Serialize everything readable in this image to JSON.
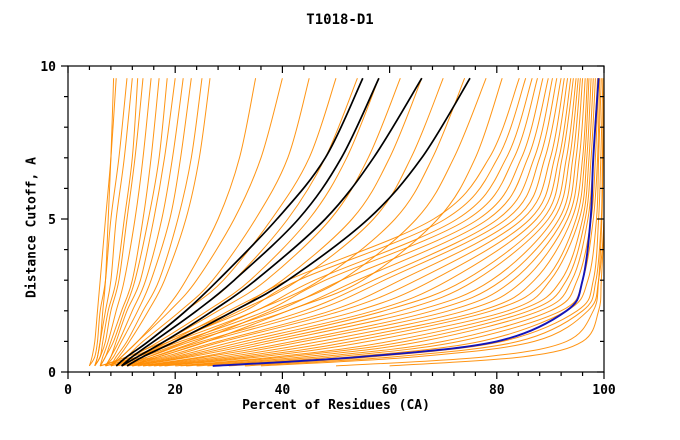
{
  "chart_data": {
    "type": "line",
    "title": "T1018-D1",
    "xlabel": "Percent of Residues (CA)",
    "ylabel": "Distance Cutoff, A",
    "xlim": [
      0,
      100
    ],
    "ylim": [
      0,
      10
    ],
    "xticks": [
      0,
      20,
      40,
      60,
      80,
      100
    ],
    "yticks": [
      0,
      5,
      10
    ],
    "x_minor_step": 4,
    "y_minor_step": 1,
    "grid": false,
    "legend": "none",
    "y_grid": [
      0.2,
      0.5,
      1,
      2,
      3,
      5,
      7,
      9.6
    ],
    "colors": {
      "orange": "#ff8c00",
      "black": "#000000",
      "blue": "#1414b8"
    },
    "series": [
      {
        "name": "orange-1",
        "color": "orange",
        "x": [
          4,
          4.5,
          5,
          5.5,
          6,
          7,
          8,
          9
        ]
      },
      {
        "name": "orange-2",
        "color": "orange",
        "x": [
          4,
          5,
          5.5,
          6,
          7,
          8,
          9.5,
          11
        ]
      },
      {
        "name": "orange-3",
        "color": "orange",
        "x": [
          5,
          5.5,
          6,
          7,
          8,
          9,
          10.5,
          12
        ]
      },
      {
        "name": "orange-4",
        "color": "orange",
        "x": [
          5,
          6,
          6.5,
          7.5,
          9,
          10.5,
          12,
          13
        ]
      },
      {
        "name": "orange-5",
        "color": "orange",
        "x": [
          5,
          6,
          7,
          8,
          9.5,
          11,
          12.5,
          14
        ]
      },
      {
        "name": "orange-6",
        "color": "orange",
        "x": [
          6,
          6.5,
          7.5,
          9,
          10.5,
          12.5,
          14,
          15.5
        ]
      },
      {
        "name": "orange-7",
        "color": "orange",
        "x": [
          6,
          7,
          8,
          10,
          12,
          14,
          15.5,
          17
        ]
      },
      {
        "name": "orange-8",
        "color": "orange",
        "x": [
          6,
          7,
          8.5,
          10.5,
          12.5,
          15,
          17,
          18.5
        ]
      },
      {
        "name": "orange-9",
        "color": "orange",
        "x": [
          7,
          8,
          9,
          11,
          13.5,
          16,
          18,
          20
        ]
      },
      {
        "name": "orange-10",
        "color": "orange",
        "x": [
          7,
          8,
          9.5,
          12,
          14.5,
          17.5,
          19.5,
          21.5
        ]
      },
      {
        "name": "orange-11",
        "color": "orange",
        "x": [
          7,
          8.5,
          10,
          13,
          15.5,
          19,
          21,
          23
        ]
      },
      {
        "name": "orange-12",
        "color": "orange",
        "x": [
          8,
          9,
          11,
          14,
          17,
          20.5,
          23,
          25
        ]
      },
      {
        "name": "orange-13",
        "color": "orange",
        "x": [
          8,
          9.5,
          11.5,
          15,
          18,
          22,
          24.5,
          26.5
        ]
      },
      {
        "name": "orange-14",
        "color": "orange",
        "x": [
          5,
          5.5,
          6,
          6.5,
          7,
          7.5,
          8,
          8.5
        ]
      },
      {
        "name": "orange-15",
        "color": "orange",
        "x": [
          8,
          10,
          13,
          18,
          22,
          28,
          32,
          35
        ]
      },
      {
        "name": "orange-16",
        "color": "orange",
        "x": [
          8,
          10,
          13,
          19,
          24,
          31,
          36,
          40
        ]
      },
      {
        "name": "orange-17",
        "color": "orange",
        "x": [
          9,
          11,
          14,
          21,
          27,
          35,
          41,
          45
        ]
      },
      {
        "name": "orange-18",
        "color": "orange",
        "x": [
          9,
          11,
          15,
          22,
          29,
          38,
          45,
          50
        ]
      },
      {
        "name": "orange-19",
        "color": "orange",
        "x": [
          9,
          12,
          16,
          24,
          31,
          41,
          48,
          54
        ]
      },
      {
        "name": "orange-20",
        "color": "orange",
        "x": [
          10,
          12,
          17,
          26,
          34,
          45,
          52,
          58
        ]
      },
      {
        "name": "orange-21",
        "color": "orange",
        "x": [
          10,
          13,
          18,
          28,
          37,
          49,
          56,
          62
        ]
      },
      {
        "name": "orange-22",
        "color": "orange",
        "x": [
          10,
          13,
          19,
          30,
          40,
          53,
          60,
          66
        ]
      },
      {
        "name": "orange-23",
        "color": "orange",
        "x": [
          11,
          14,
          20,
          32,
          43,
          57,
          64,
          70
        ]
      },
      {
        "name": "orange-24",
        "color": "orange",
        "x": [
          11,
          15,
          22,
          35,
          47,
          61,
          68,
          74
        ]
      },
      {
        "name": "orange-25",
        "color": "orange",
        "x": [
          12,
          16,
          24,
          38,
          51,
          65,
          72,
          78
        ]
      },
      {
        "name": "orange-26",
        "color": "orange",
        "x": [
          12,
          17,
          26,
          41,
          55,
          69,
          76,
          81
        ]
      },
      {
        "name": "orange-27",
        "color": "orange",
        "x": [
          60,
          85,
          96,
          99,
          99.5,
          100,
          100,
          100
        ]
      },
      {
        "name": "orange-28",
        "color": "orange",
        "x": [
          50,
          78,
          93,
          98,
          99,
          99.6,
          99.8,
          100
        ]
      },
      {
        "name": "orange-29",
        "color": "orange",
        "x": [
          36,
          65,
          87,
          97,
          99,
          100,
          100,
          100
        ]
      },
      {
        "name": "orange-30",
        "color": "orange",
        "x": [
          33,
          61,
          84,
          96,
          98.5,
          99.5,
          99.7,
          100
        ]
      },
      {
        "name": "orange-31",
        "color": "orange",
        "x": [
          30,
          57,
          81,
          95,
          98,
          99,
          99.4,
          99.8
        ]
      },
      {
        "name": "orange-32",
        "color": "orange",
        "x": [
          28,
          53,
          77,
          93,
          97,
          98.6,
          99,
          99.5
        ]
      },
      {
        "name": "orange-33",
        "color": "orange",
        "x": [
          26,
          50,
          73,
          92,
          96,
          98,
          98.8,
          99.2
        ]
      },
      {
        "name": "orange-34",
        "color": "orange",
        "x": [
          24,
          47,
          70,
          90,
          95,
          97.6,
          98.4,
          99
        ]
      },
      {
        "name": "orange-35",
        "color": "orange",
        "x": [
          22,
          44,
          66,
          88,
          94,
          97,
          98,
          98.8
        ]
      },
      {
        "name": "orange-36",
        "color": "orange",
        "x": [
          21,
          41,
          63,
          86,
          93,
          96.5,
          97.6,
          98.4
        ]
      },
      {
        "name": "orange-37",
        "color": "orange",
        "x": [
          20,
          39,
          60,
          84,
          92,
          96,
          97.2,
          98
        ]
      },
      {
        "name": "orange-38",
        "color": "orange",
        "x": [
          18,
          36,
          56,
          82,
          90,
          95.4,
          96.8,
          97.6
        ]
      },
      {
        "name": "orange-39",
        "color": "orange",
        "x": [
          17,
          34,
          53,
          79,
          89,
          94.8,
          96.4,
          97.2
        ]
      },
      {
        "name": "orange-40",
        "color": "orange",
        "x": [
          16,
          32,
          50,
          77,
          87,
          94,
          96,
          96.9
        ]
      },
      {
        "name": "orange-41",
        "color": "orange",
        "x": [
          15,
          30,
          47,
          74,
          85,
          93.2,
          95.4,
          96.5
        ]
      },
      {
        "name": "orange-42",
        "color": "orange",
        "x": [
          14,
          28,
          44,
          71,
          83,
          92.4,
          94.8,
          96
        ]
      },
      {
        "name": "orange-43",
        "color": "orange",
        "x": [
          14,
          26,
          42,
          68,
          81,
          91.6,
          94.2,
          95.6
        ]
      },
      {
        "name": "orange-44",
        "color": "orange",
        "x": [
          13,
          25,
          39,
          65,
          79,
          90.6,
          93.6,
          95.2
        ]
      },
      {
        "name": "orange-45",
        "color": "orange",
        "x": [
          12,
          23,
          37,
          62,
          76,
          89.6,
          93,
          94.8
        ]
      },
      {
        "name": "orange-46",
        "color": "orange",
        "x": [
          12,
          22,
          35,
          59,
          74,
          88.6,
          92.2,
          94.3
        ]
      },
      {
        "name": "orange-47",
        "color": "orange",
        "x": [
          11,
          21,
          33,
          57,
          71,
          87.4,
          91.6,
          93.8
        ]
      },
      {
        "name": "orange-48",
        "color": "orange",
        "x": [
          11,
          20,
          31,
          54,
          68,
          86.2,
          90.8,
          93.2
        ]
      },
      {
        "name": "orange-49",
        "color": "orange",
        "x": [
          10,
          19,
          29,
          51,
          65,
          84.8,
          90,
          92.6
        ]
      },
      {
        "name": "orange-50",
        "color": "orange",
        "x": [
          10,
          18,
          28,
          49,
          62,
          83.4,
          89,
          92
        ]
      },
      {
        "name": "orange-51",
        "color": "orange",
        "x": [
          9,
          17,
          26,
          46,
          59,
          81.8,
          88,
          91.2
        ]
      },
      {
        "name": "orange-52",
        "color": "orange",
        "x": [
          9,
          16,
          25,
          44,
          57,
          80.2,
          87,
          90.4
        ]
      },
      {
        "name": "orange-53",
        "color": "orange",
        "x": [
          8,
          15,
          23,
          41,
          54,
          78.4,
          85.8,
          89.6
        ]
      },
      {
        "name": "orange-54",
        "color": "orange",
        "x": [
          8,
          14,
          22,
          39,
          51,
          76.6,
          84.6,
          88.6
        ]
      },
      {
        "name": "orange-55",
        "color": "orange",
        "x": [
          7,
          13,
          21,
          37,
          48,
          74.6,
          83.2,
          87.6
        ]
      },
      {
        "name": "orange-56",
        "color": "orange",
        "x": [
          7,
          13,
          20,
          35,
          46,
          72.6,
          81.8,
          86.6
        ]
      },
      {
        "name": "orange-57",
        "color": "orange",
        "x": [
          6,
          12,
          19,
          33,
          43,
          70.4,
          80.2,
          85.4
        ]
      },
      {
        "name": "orange-58",
        "color": "orange",
        "x": [
          6,
          11,
          18,
          31,
          41,
          68.2,
          78.6,
          84.2
        ]
      },
      {
        "name": "black-1",
        "color": "black",
        "x": [
          9,
          11,
          15,
          22,
          28,
          39,
          48,
          55
        ]
      },
      {
        "name": "black-2",
        "color": "black",
        "x": [
          10,
          12,
          16,
          24,
          31,
          43,
          51,
          58
        ]
      },
      {
        "name": "black-3",
        "color": "black",
        "x": [
          10,
          13,
          18,
          27,
          35,
          48,
          57,
          66
        ]
      },
      {
        "name": "black-4",
        "color": "black",
        "x": [
          11,
          14,
          20,
          31,
          41,
          56,
          66,
          75
        ]
      },
      {
        "name": "blue-model",
        "color": "blue",
        "x": [
          27,
          55,
          80,
          93,
          96,
          97.5,
          98,
          99
        ]
      }
    ]
  },
  "labels": {
    "title": "T1018-D1",
    "xlabel": "Percent of Residues (CA)",
    "ylabel": "Distance Cutoff, A"
  }
}
